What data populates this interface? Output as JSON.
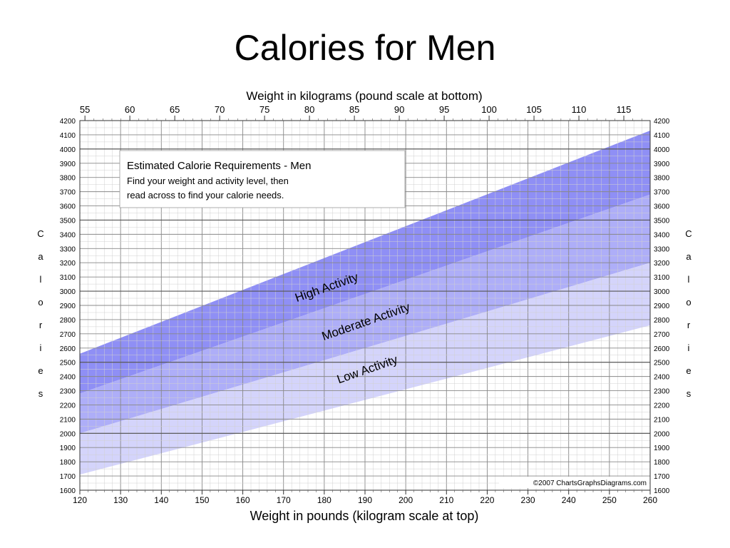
{
  "slide_title": "Calories for Men",
  "chart_data": {
    "type": "area",
    "title": "",
    "top_axis_label": "Weight in kilograms (pound scale at bottom)",
    "bottom_axis_label": "Weight in pounds (kilogram scale at top)",
    "side_axis_label_letters": [
      "C",
      "a",
      "l",
      "o",
      "r",
      "i",
      "e",
      "s"
    ],
    "x_lb_range": [
      120,
      260
    ],
    "x_lb_ticks": [
      120,
      130,
      140,
      150,
      160,
      170,
      180,
      190,
      200,
      210,
      220,
      230,
      240,
      250,
      260
    ],
    "x_kg_ticks": [
      55,
      60,
      65,
      70,
      75,
      80,
      85,
      90,
      95,
      100,
      105,
      110,
      115
    ],
    "ylim": [
      1600,
      4200
    ],
    "y_ticks": [
      1600,
      1700,
      1800,
      1900,
      2000,
      2100,
      2200,
      2300,
      2400,
      2500,
      2600,
      2700,
      2800,
      2900,
      3000,
      3100,
      3200,
      3300,
      3400,
      3500,
      3600,
      3700,
      3800,
      3900,
      4000,
      4100,
      4200
    ],
    "grid": true,
    "series": [
      {
        "name": "High Activity",
        "x": [
          120,
          260
        ],
        "lower": [
          2280,
          3680
        ],
        "upper": [
          2560,
          4130
        ],
        "color": "#8f8ff5"
      },
      {
        "name": "Moderate Activity",
        "x": [
          120,
          260
        ],
        "lower": [
          2000,
          3200
        ],
        "upper": [
          2280,
          3680
        ],
        "color": "#aeaef8"
      },
      {
        "name": "Low Activity",
        "x": [
          120,
          260
        ],
        "lower": [
          1710,
          2760
        ],
        "upper": [
          2000,
          3200
        ],
        "color": "#d4d4fb"
      }
    ],
    "annotation_box": {
      "heading": "Estimated Calorie Requirements - Men",
      "line1": "Find your weight and activity level, then",
      "line2": "read across to find your calorie needs."
    },
    "copyright": "©2007 ChartsGraphsDiagrams.com"
  }
}
